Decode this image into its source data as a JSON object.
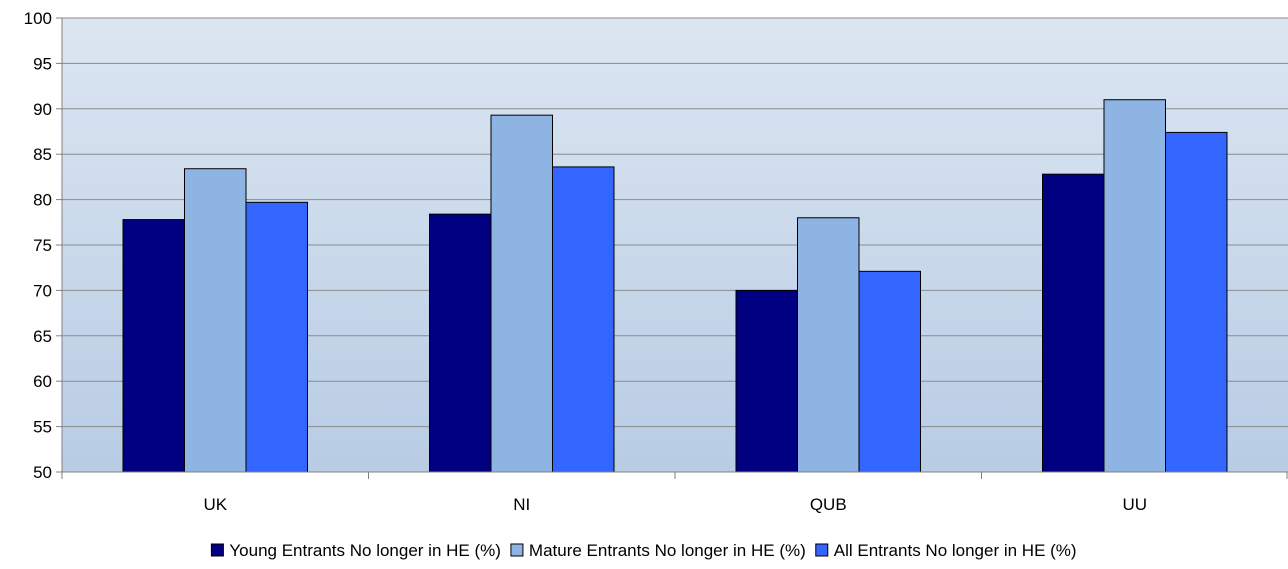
{
  "chart_data": {
    "type": "bar",
    "title": "",
    "xlabel": "",
    "ylabel": "",
    "categories": [
      "UK",
      "NI",
      "QUB",
      "UU"
    ],
    "series": [
      {
        "name": "Young Entrants No longer in HE (%)",
        "color": "#000080",
        "values": [
          77.8,
          78.4,
          70.0,
          82.8
        ]
      },
      {
        "name": "Mature Entrants No longer in HE (%)",
        "color": "#8EB4E3",
        "values": [
          83.4,
          89.3,
          78.0,
          91.0
        ]
      },
      {
        "name": "All Entrants No longer in HE (%)",
        "color": "#3366FF",
        "values": [
          79.7,
          83.6,
          72.1,
          87.4
        ]
      }
    ],
    "ylim": [
      50,
      100
    ],
    "yticks": [
      50,
      55,
      60,
      65,
      70,
      75,
      80,
      85,
      90,
      95,
      100
    ],
    "grid": true,
    "legend_position": "bottom",
    "plot_background": "gradient light blue"
  }
}
